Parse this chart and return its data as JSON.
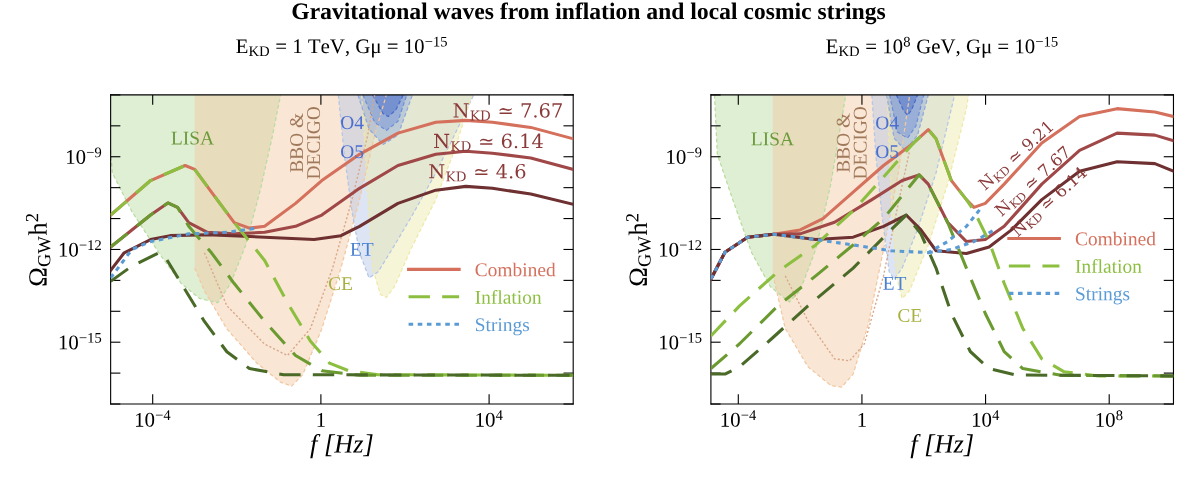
{
  "chart_data": [
    {
      "type": "line",
      "title": "Gravitational waves from inflation and local cosmic strings",
      "subtitle": "E$_{KD}$ = 1 TeV, Gμ = 10$^{−15}$",
      "xlabel": "f [Hz]",
      "ylabel": "Ω$_{GW}$h$^{2}$",
      "log": "xy",
      "xlim": [
        1e-05,
        1000000.0
      ],
      "ylim": [
        1e-17,
        1e-07
      ],
      "xticks": [
        {
          "value": 0.0001,
          "label": "10$^{−4}$"
        },
        1,
        {
          "value": 10000.0,
          "label": "10$^{4}$"
        }
      ],
      "yticks": [
        {
          "value": 1e-17,
          "label": null
        },
        {
          "value": 1e-16,
          "label": null
        },
        {
          "value": 1e-15,
          "label": "10$^{−15}$"
        },
        {
          "value": 1e-14,
          "label": null
        },
        {
          "value": 1e-13,
          "label": null
        },
        {
          "value": 1e-12,
          "label": "10$^{−12}$"
        },
        {
          "value": 1e-11,
          "label": null
        },
        {
          "value": 1e-10,
          "label": null
        },
        {
          "value": 1e-09,
          "label": "10$^{−9}$"
        },
        {
          "value": 1e-08,
          "label": null
        },
        {
          "value": 1e-07,
          "label": null
        }
      ],
      "grid": false,
      "legend": "right",
      "series": [
        {
          "type": "line",
          "color": "#b8dba0",
          "line_style": "dashed",
          "x": [
            1e-05,
            1.1e-05,
            3.2e-05,
            0.00014,
            0.00048,
            0.0013,
            0.0035,
            0.0071,
            0.016,
            0.037,
            0.071,
            0.11
          ],
          "values": [
            1.6e-09,
            3e-10,
            1.7e-11,
            7.8e-13,
            7.9e-14,
            2.6e-14,
            1.9e-14,
            7.9e-14,
            1.3e-12,
            9.5e-11,
            5e-09,
            1e-07
          ],
          "lower": [
            1.6e-09,
            3e-10,
            1.7e-11,
            7.8e-13,
            7.9e-14,
            2.6e-14,
            1.9e-14,
            7.9e-14,
            1.3e-12,
            9.5e-11,
            5e-09,
            1e-07
          ],
          "upper": [
            1e-07,
            1e-07,
            1e-07,
            1e-07,
            1e-07,
            1e-07,
            1e-07,
            1e-07,
            1e-07,
            1e-07,
            1e-07,
            1e-07
          ]
        },
        {
          "type": "line",
          "color": "#f2c8a2",
          "line_style": "dashed",
          "x": [
            0.001,
            0.0017,
            0.0058,
            0.03,
            0.11,
            0.2,
            0.37,
            1.05,
            3.0,
            8.3,
            19,
            36
          ],
          "values": [
            2.5e-13,
            4.6e-14,
            2.7e-15,
            2.1e-16,
            5.1e-17,
            3.8e-17,
            8.9e-17,
            2.7e-15,
            2.5e-13,
            4.1e-11,
            5e-09,
            1e-07
          ],
          "lower": [
            2.5e-13,
            4.6e-14,
            2.7e-15,
            2.1e-16,
            5.1e-17,
            3.8e-17,
            8.9e-17,
            2.7e-15,
            2.5e-13,
            4.1e-11,
            5e-09,
            1e-07
          ],
          "upper": [
            1e-07,
            1e-07,
            1e-07,
            1e-07,
            1e-07,
            1e-07,
            1e-07,
            1e-07,
            1e-07,
            1e-07,
            1e-07,
            1e-07
          ]
        },
        {
          "type": "line",
          "color": "#d9a88a",
          "line_style": "dotted",
          "x": [
            0.0017,
            0.0058,
            0.046,
            0.16,
            0.56,
            1.9,
            5.5,
            13,
            19
          ],
          "values": [
            7.8e-13,
            1.5e-14,
            8.7e-16,
            3.7e-16,
            2.7e-15,
            2.5e-13,
            4.1e-11,
            5e-09,
            1e-07
          ]
        },
        {
          "type": "line",
          "color": "#b4c6e6",
          "line_style": "dashed",
          "x": [
            2.6,
            3.6,
            5.5,
            8.3,
            14,
            23,
            55,
            150,
            540,
            1500,
            4300
          ],
          "values": [
            1e-07,
            1.2e-09,
            1.7e-11,
            7.8e-13,
            1.2e-13,
            1.9e-13,
            1.3e-12,
            1.3e-11,
            3e-10,
            5e-09,
            1e-07
          ],
          "lower": [
            1e-07,
            1.2e-09,
            1.7e-11,
            7.8e-13,
            1.2e-13,
            1.9e-13,
            1.3e-12,
            1.3e-11,
            3e-10,
            5e-09,
            1e-07
          ],
          "upper": [
            1e-07,
            1e-07,
            1e-07,
            1e-07,
            1e-07,
            1e-07,
            1e-07,
            1e-07,
            1e-07,
            1e-07,
            1e-07
          ]
        },
        {
          "type": "line",
          "color": "#eee9a8",
          "line_style": "dashed",
          "x": [
            9.3,
            13,
            17,
            26,
            36,
            55,
            150,
            540,
            1500,
            3900
          ],
          "values": [
            1e-07,
            7.2e-11,
            2.5e-13,
            3.5e-14,
            2.8e-14,
            6e-14,
            1.3e-12,
            4.1e-11,
            1.6e-09,
            1e-07
          ],
          "lower": [
            1e-07,
            7.2e-11,
            2.5e-13,
            3.5e-14,
            2.8e-14,
            6e-14,
            1.3e-12,
            4.1e-11,
            1.6e-09,
            1e-07
          ],
          "upper": [
            1e-07,
            1e-07,
            1e-07,
            1e-07,
            1e-07,
            1e-07,
            1e-07,
            1e-07,
            1e-07,
            1e-07
          ]
        },
        {
          "type": "line",
          "color": "#8fa8de",
          "line_style": "dashed",
          "x": [
            7.6,
            14,
            30,
            68,
            150
          ],
          "values": [
            1e-07,
            7.9e-09,
            2.5e-09,
            5e-09,
            1e-07
          ],
          "lower": [
            1e-07,
            7.9e-09,
            2.5e-09,
            5e-09,
            1e-07
          ],
          "upper": [
            1e-07,
            1e-07,
            1e-07,
            1e-07,
            1e-07
          ]
        },
        {
          "type": "line",
          "color": "#6f8fd8",
          "line_style": "dashed",
          "x": [
            10,
            19,
            36,
            68,
            110
          ],
          "values": [
            1e-07,
            1.3e-08,
            7.1e-09,
            1.4e-08,
            1e-07
          ],
          "lower": [
            1e-07,
            1.3e-08,
            7.1e-09,
            1.4e-08,
            1e-07
          ],
          "upper": [
            1e-07,
            1e-07,
            1e-07,
            1e-07,
            1e-07
          ]
        },
        {
          "type": "line",
          "color": "#4a6cc8",
          "line_style": "dashed",
          "x": [
            17,
            30,
            40,
            60,
            91
          ],
          "values": [
            1e-07,
            2.5e-08,
            2e-08,
            3.2e-08,
            1e-07
          ],
          "lower": [
            1e-07,
            2.5e-08,
            2e-08,
            3.2e-08,
            1e-07
          ],
          "upper": [
            1e-07,
            1e-07,
            1e-07,
            1e-07,
            1e-07
          ]
        },
        {
          "type": "line",
          "name": "Combined",
          "color": "#d4705c",
          "line_style": "solid",
          "x": [
            1e-05,
            8.9e-05,
            0.00059,
            0.001,
            0.0025,
            0.0087,
            0.02,
            0.046,
            0.25,
            1.05,
            8.3,
            68,
            540,
            2800,
            12000.0,
            98000.0,
            1000000.0
          ],
          "values": [
            1.3e-11,
            1.7e-10,
            5.2e-10,
            3.9e-10,
            7.2e-11,
            7.4e-12,
            4.9e-12,
            5.6e-12,
            3.1e-11,
            1.7e-10,
            1.2e-09,
            5.8e-09,
            1.3e-08,
            1.5e-08,
            1.3e-08,
            8.9e-09,
            3.8e-09
          ]
        },
        {
          "type": "line",
          "color": "#a04848",
          "line_style": "solid",
          "x": [
            1e-05,
            8.9e-05,
            0.00023,
            0.00039,
            0.00072,
            0.002,
            0.0087,
            0.046,
            0.25,
            1.05,
            8.3,
            68,
            540,
            2800,
            12000.0,
            98000.0,
            1000000.0
          ],
          "values": [
            1.2e-12,
            1.3e-11,
            3.2e-11,
            2.3e-11,
            7.4e-12,
            3.6e-12,
            3.2e-12,
            3.6e-12,
            5.6e-12,
            1.3e-11,
            9.5e-11,
            5.2e-10,
            1.2e-09,
            1.5e-09,
            1.3e-09,
            9.1e-10,
            3.9e-10
          ]
        },
        {
          "type": "line",
          "color": "#6e3030",
          "line_style": "solid",
          "x": [
            1e-05,
            2.1e-05,
            8.9e-05,
            0.00026,
            0.002,
            0.046,
            0.69,
            3.0,
            8.3,
            68,
            540,
            2800,
            12000.0,
            98000.0,
            1000000.0
          ],
          "values": [
            2.1e-13,
            7.8e-13,
            2.1e-12,
            2.8e-12,
            3e-12,
            2.5e-12,
            2.1e-12,
            2.8e-12,
            5.6e-12,
            3.1e-11,
            8.3e-11,
            1.1e-10,
            9.5e-11,
            6.2e-11,
            2.9e-11
          ]
        },
        {
          "type": "line",
          "name": "Inflation",
          "color": "#8cbf40",
          "line_style": "dashed",
          "x": [
            1e-05,
            8.9e-05,
            0.00059,
            0.001,
            0.0025,
            0.0087,
            0.046,
            0.16,
            0.56,
            1.6,
            4.5,
            23,
            1000000.0
          ],
          "values": [
            1.3e-11,
            1.7e-10,
            5.2e-10,
            3.9e-10,
            7.2e-11,
            7.4e-12,
            4.4e-13,
            1.9e-14,
            1.1e-15,
            2.1e-16,
            1.2e-16,
            8.9e-17,
            8.5e-17
          ]
        },
        {
          "type": "line",
          "color": "#6a9a30",
          "line_style": "dashed",
          "x": [
            1e-05,
            8.9e-05,
            0.00023,
            0.00039,
            0.00072,
            0.0025,
            0.0087,
            0.046,
            0.25,
            1.05,
            8.3,
            1000000.0
          ],
          "values": [
            1.2e-12,
            1.3e-11,
            3.2e-11,
            2.3e-11,
            5.6e-12,
            7.8e-13,
            7.9e-14,
            4.7e-15,
            3.7e-16,
            1.2e-16,
            8.5e-17,
            8.5e-17
          ]
        },
        {
          "type": "line",
          "color": "#4a6a28",
          "line_style": "dashed",
          "x": [
            1e-05,
            3.2e-05,
            0.00014,
            0.00021,
            0.00048,
            0.0017,
            0.0058,
            0.02,
            0.13,
            1000000.0
          ],
          "values": [
            9.3e-14,
            2.9e-13,
            7.8e-13,
            5e-13,
            7.9e-14,
            4.7e-15,
            4.9e-16,
            1.4e-16,
            8.9e-17,
            8.5e-17
          ]
        },
        {
          "type": "line",
          "name": "Strings",
          "color": "#5b9bd5",
          "line_style": "dotted",
          "x": [
            1e-05,
            3.2e-05,
            8.9e-05,
            0.00072,
            0.0058,
            0.03
          ],
          "values": [
            1.2e-13,
            1e-12,
            1.8e-12,
            3.2e-12,
            3.6e-12,
            4.9e-12
          ]
        }
      ],
      "annotations": [
        "LISA",
        "BBO &\nDECIGO",
        "O4",
        "O5",
        "ET",
        "CE",
        "N$_{KD}$ ≃ 7.67",
        "N$_{KD}$ ≃ 6.14",
        "N$_{KD}$ ≃ 4.6"
      ]
    },
    {
      "type": "line",
      "subtitle": "E$_{KD}$ = 10$^{8}$ GeV, Gμ = 10$^{−15}$",
      "xlabel": "f [Hz]",
      "ylabel": "Ω$_{GW}$h$^{2}$",
      "log": "xy",
      "xlim": [
        1.3e-05,
        12000000000.0
      ],
      "ylim": [
        1e-17,
        1e-07
      ],
      "xticks": [
        {
          "value": 0.0001,
          "label": "10$^{−4}$"
        },
        1,
        {
          "value": 10000.0,
          "label": "10$^{4}$"
        },
        {
          "value": 100000000.0,
          "label": "10$^{8}$"
        }
      ],
      "yticks": [
        {
          "value": 1e-17,
          "label": null
        },
        {
          "value": 1e-16,
          "label": null
        },
        {
          "value": 1e-15,
          "label": "10$^{−15}$"
        },
        {
          "value": 1e-14,
          "label": null
        },
        {
          "value": 1e-13,
          "label": null
        },
        {
          "value": 1e-12,
          "label": "10$^{−12}$"
        },
        {
          "value": 1e-11,
          "label": null
        },
        {
          "value": 1e-10,
          "label": null
        },
        {
          "value": 1e-09,
          "label": "10$^{−9}$"
        },
        {
          "value": 1e-08,
          "label": null
        },
        {
          "value": 1e-07,
          "label": null
        }
      ],
      "grid": false,
      "legend": "right",
      "series": [
        {
          "type": "line",
          "color": "#b8dba0",
          "line_style": "dashed",
          "x": [
            1.7e-05,
            2.1e-05,
            6.6e-05,
            0.00027,
            0.0011,
            0.0045,
            0.01,
            0.032,
            0.098,
            0.3
          ],
          "values": [
            1e-07,
            1.2e-09,
            4.1e-11,
            7.9e-13,
            6.2e-14,
            2e-14,
            4.7e-14,
            1e-12,
            1.3e-10,
            1e-07
          ],
          "lower": [
            1e-07,
            1.2e-09,
            4.1e-11,
            7.9e-13,
            6.2e-14,
            2e-14,
            4.7e-14,
            1e-12,
            1.3e-10,
            1e-07
          ],
          "upper": [
            1e-07,
            1e-07,
            1e-07,
            1e-07,
            1e-07,
            1e-07,
            1e-07,
            1e-07,
            1e-07,
            1e-07
          ]
        },
        {
          "type": "line",
          "color": "#f2c8a2",
          "line_style": "dashed",
          "x": [
            0.0013,
            0.0033,
            0.018,
            0.098,
            0.22,
            0.52,
            1.6,
            5.0,
            15,
            35
          ],
          "values": [
            1.6e-13,
            2.8e-15,
            1.6e-16,
            4e-17,
            3.5e-17,
            9.3e-17,
            3.7e-15,
            1e-12,
            3e-10,
            1e-07
          ],
          "lower": [
            1.6e-13,
            2.8e-15,
            1.6e-16,
            4e-17,
            3.5e-17,
            9.3e-17,
            3.7e-15,
            1e-12,
            3e-10,
            1e-07
          ],
          "upper": [
            1e-07,
            1e-07,
            1e-07,
            1e-07,
            1e-07,
            1e-07,
            1e-07,
            1e-07,
            1e-07,
            1e-07
          ]
        },
        {
          "type": "line",
          "color": "#d9a88a",
          "line_style": "dotted",
          "x": [
            0.0033,
            0.018,
            0.13,
            0.4,
            1.2,
            5.0,
            15,
            35
          ],
          "values": [
            1.4e-13,
            4.9e-15,
            2.9e-16,
            2.5e-16,
            8.9e-16,
            1.4e-13,
            3.1e-11,
            1.6e-09
          ]
        },
        {
          "type": "line",
          "color": "#b4c6e6",
          "line_style": "dashed",
          "x": [
            2.1,
            2.8,
            4.3,
            7.6,
            11,
            20,
            62,
            250,
            1000
          ],
          "values": [
            1e-07,
            1.2e-09,
            1.8e-11,
            1.9e-13,
            1.1e-13,
            2.5e-13,
            4.3e-12,
            3e-10,
            1e-07
          ],
          "lower": [
            1e-07,
            1.2e-09,
            1.8e-11,
            1.9e-13,
            1.1e-13,
            2.5e-13,
            4.3e-12,
            3e-10,
            1e-07
          ],
          "upper": [
            1e-07,
            1e-07,
            1e-07,
            1e-07,
            1e-07,
            1e-07,
            1e-07,
            1e-07,
            1e-07
          ]
        },
        {
          "type": "line",
          "color": "#eee9a8",
          "line_style": "dashed",
          "x": [
            6.6,
            8.7,
            13,
            20,
            35,
            140,
            590,
            2400,
            2800
          ],
          "values": [
            1e-07,
            7.2e-11,
            1.4e-13,
            2.6e-14,
            4.7e-14,
            1.4e-12,
            1.3e-10,
            3.6e-08,
            1e-07
          ],
          "lower": [
            1e-07,
            7.2e-11,
            1.4e-13,
            2.6e-14,
            4.7e-14,
            1.4e-12,
            1.3e-10,
            3.6e-08,
            1e-07
          ],
          "upper": [
            1e-07,
            1e-07,
            1e-07,
            1e-07,
            1e-07,
            1e-07,
            1e-07,
            1e-07,
            1e-07
          ]
        },
        {
          "type": "line",
          "color": "#8fa8de",
          "line_style": "dashed",
          "x": [
            6.3,
            11,
            25,
            63,
            140
          ],
          "values": [
            1e-07,
            4e-09,
            1.6e-09,
            5e-09,
            1e-07
          ],
          "lower": [
            1e-07,
            4e-09,
            1.6e-09,
            5e-09,
            1e-07
          ],
          "upper": [
            1e-07,
            1e-07,
            1e-07,
            1e-07,
            1e-07
          ]
        },
        {
          "type": "line",
          "color": "#6f8fd8",
          "line_style": "dashed",
          "x": [
            7.9,
            14,
            30,
            56,
            100
          ],
          "values": [
            1e-07,
            6.3e-09,
            4e-09,
            1e-08,
            1e-07
          ],
          "lower": [
            1e-07,
            6.3e-09,
            4e-09,
            1e-08,
            1e-07
          ],
          "upper": [
            1e-07,
            1e-07,
            1e-07,
            1e-07,
            1e-07
          ]
        },
        {
          "type": "line",
          "color": "#4a6cc8",
          "line_style": "dashed",
          "x": [
            13,
            22,
            30,
            40,
            63
          ],
          "values": [
            1e-07,
            3.2e-08,
            2.2e-08,
            3.2e-08,
            1e-07
          ],
          "lower": [
            1e-07,
            3.2e-08,
            2.2e-08,
            3.2e-08,
            1e-07
          ],
          "upper": [
            1e-07,
            1e-07,
            1e-07,
            1e-07,
            1e-07
          ]
        },
        {
          "type": "line",
          "name": "Combined",
          "color": "#d4705c",
          "line_style": "solid",
          "x": [
            1.3e-05,
            3.7e-05,
            0.0002,
            0.0014,
            0.01,
            0.055,
            0.52,
            5.0,
            47,
            140,
            250,
            780,
            2400,
            4200,
            9800,
            40000.0,
            660000.0,
            11000000.0,
            180000000.0,
            3000000000.0,
            12000000000.0
          ],
          "values": [
            1.1e-13,
            8.1e-13,
            2.5e-12,
            3.1e-12,
            4.3e-12,
            1e-11,
            7.2e-11,
            5.2e-10,
            2.8e-09,
            7.6e-09,
            3.8e-09,
            1.7e-10,
            4.1e-11,
            2.3e-11,
            3.1e-11,
            1.3e-10,
            2.8e-09,
            2e-08,
            3.6e-08,
            2.8e-08,
            2e-08
          ]
        },
        {
          "type": "line",
          "color": "#a04848",
          "line_style": "solid",
          "x": [
            1.3e-05,
            3.7e-05,
            0.0002,
            0.0014,
            0.01,
            0.13,
            2.1,
            20,
            71,
            140,
            590,
            2400,
            9800,
            40000.0,
            660000.0,
            11000000.0,
            180000000.0,
            3000000000.0,
            12000000000.0
          ],
          "values": [
            1.1e-13,
            8.1e-13,
            2.5e-12,
            3.1e-12,
            3.2e-12,
            7.6e-12,
            4.1e-11,
            1.7e-10,
            2.6e-10,
            1.3e-10,
            7.6e-12,
            1.8e-12,
            2.1e-12,
            5.6e-12,
            1.3e-10,
            1.6e-09,
            5.8e-09,
            5e-09,
            3.3e-09
          ]
        },
        {
          "type": "line",
          "color": "#6e3030",
          "line_style": "solid",
          "x": [
            1.3e-05,
            3.7e-05,
            0.0002,
            0.0014,
            0.032,
            0.52,
            5.0,
            27,
            81,
            250,
            2400,
            13000.0,
            69000.0,
            660000.0,
            11000000.0,
            180000000.0,
            3000000000.0,
            12000000000.0
          ],
          "values": [
            1.1e-13,
            8.1e-13,
            2.5e-12,
            3.1e-12,
            2.1e-12,
            2.5e-12,
            5.6e-12,
            1.3e-11,
            4.3e-12,
            9.1e-13,
            7.4e-13,
            1.2e-12,
            4.3e-12,
            4.1e-11,
            3.4e-10,
            6.9e-10,
            6e-10,
            3.4e-10
          ]
        },
        {
          "type": "line",
          "name": "Inflation",
          "color": "#8cbf40",
          "line_style": "dashed",
          "x": [
            1.3e-05,
            0.00011,
            0.0019,
            0.032,
            0.52,
            5.0,
            47,
            140,
            250,
            780,
            2400,
            4200,
            13000.0,
            40000.0,
            160000.0,
            660000.0,
            3500000.0,
            45000000.0,
            12000000000.0
          ],
          "values": [
            1.6e-15,
            1.5e-14,
            1.9e-13,
            1.4e-12,
            1.8e-11,
            2.2e-10,
            2.8e-09,
            7.6e-09,
            3.8e-09,
            1.7e-10,
            4.1e-11,
            1.8e-11,
            1.8e-12,
            8.1e-14,
            2.8e-15,
            2.9e-16,
            1.1e-16,
            8.1e-17,
            8.1e-17
          ]
        },
        {
          "type": "line",
          "color": "#6a9a30",
          "line_style": "dashed",
          "x": [
            1.3e-05,
            0.00011,
            0.0019,
            0.032,
            0.52,
            5.0,
            71,
            140,
            590,
            2400,
            9800,
            40000.0,
            160000.0,
            2700000.0,
            12000000000.0
          ],
          "values": [
            1.4e-16,
            8.9e-16,
            1.5e-14,
            1.4e-13,
            1.4e-12,
            1e-11,
            2.6e-10,
            1.3e-10,
            7.6e-12,
            2.5e-13,
            8.5e-15,
            5e-16,
            1.4e-16,
            8.5e-17,
            8.1e-17
          ]
        },
        {
          "type": "line",
          "color": "#4a6a28",
          "line_style": "dashed",
          "x": [
            1.3e-05,
            3.7e-05,
            0.00011,
            0.0011,
            0.018,
            0.52,
            8.7,
            27,
            81,
            250,
            780,
            3200,
            13000.0,
            91000.0,
            12000000000.0
          ],
          "values": [
            9.3e-17,
            9.3e-17,
            1.6e-16,
            1.2e-15,
            1.5e-14,
            2.5e-13,
            4.3e-12,
            1.3e-11,
            3.2e-12,
            2.5e-13,
            8.5e-15,
            5e-16,
            1.4e-16,
            8.7e-17,
            8.1e-17
          ]
        },
        {
          "type": "line",
          "name": "Strings",
          "color": "#5b9bd5",
          "line_style": "dotted",
          "x": [
            1.3e-05,
            3.7e-05,
            0.0002,
            0.0014,
            0.032,
            0.52,
            8.7,
            140,
            590,
            2400,
            7400
          ],
          "values": [
            1.1e-13,
            8.1e-13,
            2.5e-12,
            3.1e-12,
            2.1e-12,
            1.4e-12,
            9.1e-13,
            7.9e-13,
            1.8e-12,
            5.6e-12,
            2.3e-11
          ]
        },
        {
          "type": "line",
          "color": "#5b9bd5",
          "line_style": "dotted",
          "x": [
            140,
            780,
            4200,
            17000.0
          ],
          "values": [
            7.9e-13,
            1e-12,
            1.8e-12,
            4e-12
          ]
        }
      ],
      "annotations": [
        "LISA",
        "BBO &\nDECIGO",
        "O4",
        "O5",
        "ET",
        "CE",
        "N$_{KD}$ ≃ 9.21",
        "N$_{KD}$ ≃ 7.67",
        "N$_{KD}$ ≃ 6.14"
      ]
    }
  ]
}
